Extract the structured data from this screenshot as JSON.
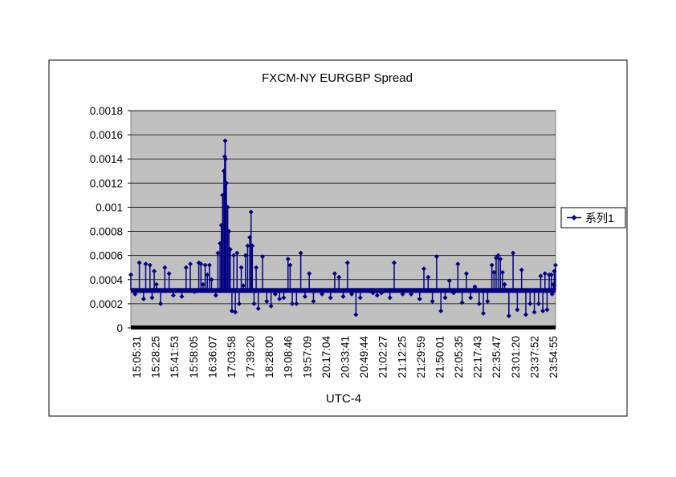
{
  "chart_data": {
    "type": "line",
    "title": "FXCM-NY EURGBP Spread",
    "xlabel": "UTC-4",
    "ylabel": "",
    "ylim": [
      0,
      0.0018
    ],
    "y_ticks": [
      "0",
      "0.0002",
      "0.0004",
      "0.0006",
      "0.0008",
      "0.001",
      "0.0012",
      "0.0014",
      "0.0016",
      "0.0018"
    ],
    "x_ticks": [
      "15:05:31",
      "15:28:25",
      "15:41:53",
      "15:58:05",
      "16:36:07",
      "17:03:58",
      "17:39:20",
      "18:28:00",
      "19:08:46",
      "19:57:09",
      "20:17:04",
      "20:33:41",
      "20:49:44",
      "21:02:27",
      "21:12:25",
      "21:29:59",
      "21:50:01",
      "22:05:35",
      "22:17:43",
      "22:35:47",
      "23:01:20",
      "23:37:52",
      "23:54:55"
    ],
    "grid": true,
    "legend_position": "right",
    "series": [
      {
        "name": "系列1",
        "color": "#000080",
        "baseline": 0.00031,
        "points": [
          [
            0.0,
            0.00044
          ],
          [
            0.01,
            0.00028
          ],
          [
            0.02,
            0.00054
          ],
          [
            0.03,
            0.00024
          ],
          [
            0.035,
            0.00053
          ],
          [
            0.045,
            0.00052
          ],
          [
            0.05,
            0.00025
          ],
          [
            0.055,
            0.00047
          ],
          [
            0.06,
            0.00036
          ],
          [
            0.07,
            0.0002
          ],
          [
            0.08,
            0.0005
          ],
          [
            0.09,
            0.00045
          ],
          [
            0.1,
            0.00027
          ],
          [
            0.12,
            0.00026
          ],
          [
            0.13,
            0.0005
          ],
          [
            0.14,
            0.00053
          ],
          [
            0.15,
            0.0003
          ],
          [
            0.16,
            0.00054
          ],
          [
            0.165,
            0.00053
          ],
          [
            0.17,
            0.00036
          ],
          [
            0.175,
            0.00052
          ],
          [
            0.18,
            0.00044
          ],
          [
            0.185,
            0.00052
          ],
          [
            0.19,
            0.0004
          ],
          [
            0.2,
            0.00027
          ],
          [
            0.205,
            0.00062
          ],
          [
            0.21,
            0.0007
          ],
          [
            0.213,
            0.00085
          ],
          [
            0.216,
            0.0011
          ],
          [
            0.219,
            0.0013
          ],
          [
            0.221,
            0.00142
          ],
          [
            0.222,
            0.00155
          ],
          [
            0.223,
            0.0014
          ],
          [
            0.225,
            0.0012
          ],
          [
            0.228,
            0.001
          ],
          [
            0.231,
            0.0008
          ],
          [
            0.234,
            0.00065
          ],
          [
            0.238,
            0.00014
          ],
          [
            0.242,
            0.0006
          ],
          [
            0.246,
            0.00013
          ],
          [
            0.25,
            0.00062
          ],
          [
            0.255,
            0.0002
          ],
          [
            0.26,
            0.0005
          ],
          [
            0.265,
            0.00035
          ],
          [
            0.27,
            0.0006
          ],
          [
            0.275,
            0.00068
          ],
          [
            0.28,
            0.00075
          ],
          [
            0.283,
            0.00096
          ],
          [
            0.286,
            0.00068
          ],
          [
            0.29,
            0.0002
          ],
          [
            0.295,
            0.0005
          ],
          [
            0.3,
            0.00016
          ],
          [
            0.31,
            0.00059
          ],
          [
            0.32,
            0.00022
          ],
          [
            0.33,
            0.00018
          ],
          [
            0.34,
            0.00028
          ],
          [
            0.35,
            0.00024
          ],
          [
            0.36,
            0.00025
          ],
          [
            0.37,
            0.00057
          ],
          [
            0.375,
            0.00052
          ],
          [
            0.38,
            0.0002
          ],
          [
            0.39,
            0.0002
          ],
          [
            0.4,
            0.00062
          ],
          [
            0.41,
            0.00026
          ],
          [
            0.42,
            0.00045
          ],
          [
            0.43,
            0.00022
          ],
          [
            0.45,
            0.00028
          ],
          [
            0.47,
            0.00025
          ],
          [
            0.48,
            0.00045
          ],
          [
            0.49,
            0.00042
          ],
          [
            0.5,
            0.00026
          ],
          [
            0.51,
            0.00054
          ],
          [
            0.52,
            0.00028
          ],
          [
            0.53,
            0.00011
          ],
          [
            0.54,
            0.00025
          ],
          [
            0.57,
            0.00029
          ],
          [
            0.58,
            0.00027
          ],
          [
            0.59,
            0.00029
          ],
          [
            0.61,
            0.00025
          ],
          [
            0.62,
            0.00054
          ],
          [
            0.64,
            0.00028
          ],
          [
            0.66,
            0.00028
          ],
          [
            0.68,
            0.00024
          ],
          [
            0.69,
            0.00049
          ],
          [
            0.7,
            0.00042
          ],
          [
            0.71,
            0.00022
          ],
          [
            0.72,
            0.00059
          ],
          [
            0.73,
            0.00014
          ],
          [
            0.74,
            0.00025
          ],
          [
            0.75,
            0.00039
          ],
          [
            0.76,
            0.00029
          ],
          [
            0.77,
            0.00053
          ],
          [
            0.78,
            0.00021
          ],
          [
            0.79,
            0.00045
          ],
          [
            0.8,
            0.00025
          ],
          [
            0.81,
            0.00034
          ],
          [
            0.82,
            0.0002
          ],
          [
            0.83,
            0.00012
          ],
          [
            0.84,
            0.00022
          ],
          [
            0.85,
            0.00052
          ],
          [
            0.855,
            0.00046
          ],
          [
            0.86,
            0.00058
          ],
          [
            0.865,
            0.0006
          ],
          [
            0.87,
            0.00057
          ],
          [
            0.875,
            0.00046
          ],
          [
            0.88,
            0.00036
          ],
          [
            0.89,
            0.0001
          ],
          [
            0.9,
            0.00062
          ],
          [
            0.91,
            0.00015
          ],
          [
            0.92,
            0.00048
          ],
          [
            0.93,
            0.00011
          ],
          [
            0.94,
            0.0002
          ],
          [
            0.95,
            0.00013
          ],
          [
            0.96,
            0.0002
          ],
          [
            0.965,
            0.00043
          ],
          [
            0.97,
            0.00014
          ],
          [
            0.975,
            0.00045
          ],
          [
            0.98,
            0.00015
          ],
          [
            0.985,
            0.00044
          ],
          [
            0.99,
            0.00044
          ],
          [
            0.992,
            0.00028
          ],
          [
            0.995,
            0.00036
          ],
          [
            0.997,
            0.00047
          ],
          [
            1.0,
            0.00052
          ]
        ]
      }
    ]
  }
}
